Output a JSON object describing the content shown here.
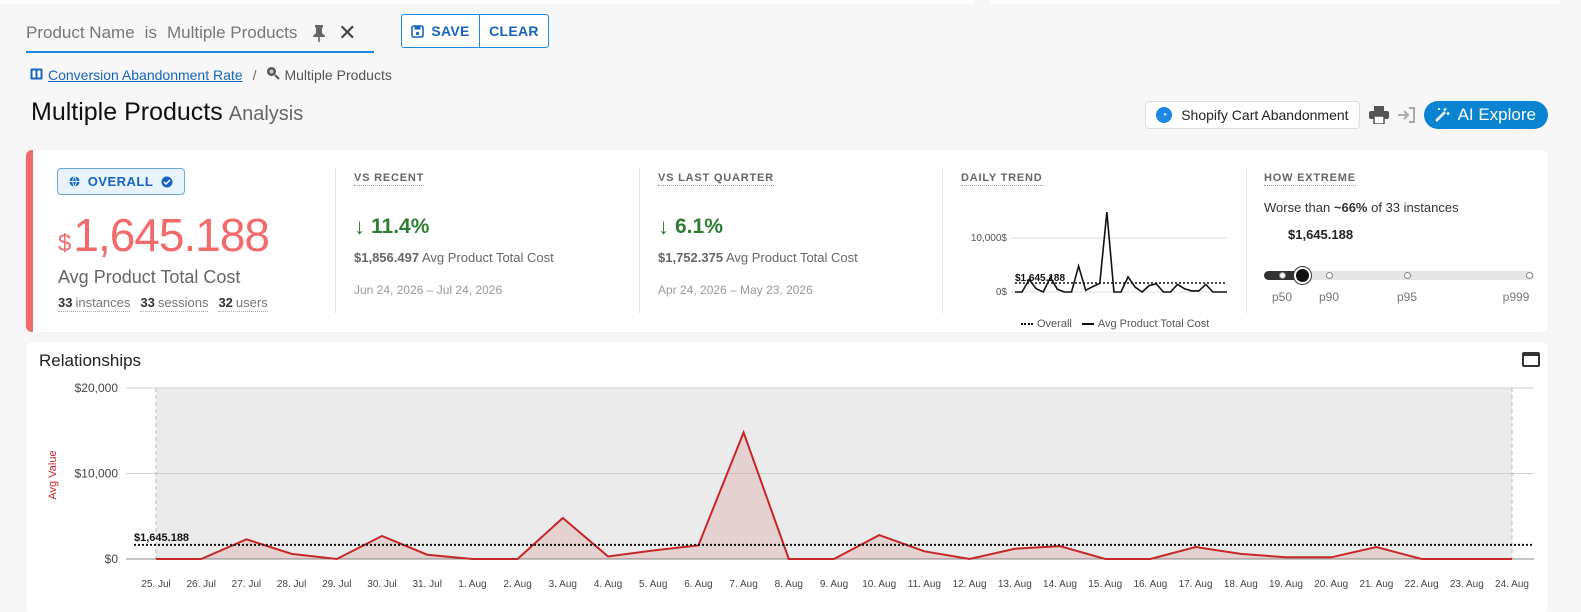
{
  "filter": {
    "field": "Product Name",
    "operator": "is",
    "value": "Multiple Products",
    "save_label": "SAVE",
    "clear_label": "CLEAR"
  },
  "breadcrumb": {
    "parent": "Conversion Abandonment Rate",
    "separator": "/",
    "current": "Multiple Products"
  },
  "page": {
    "title": "Multiple Products",
    "subtitle": "Analysis"
  },
  "actions": {
    "shopify_label": "Shopify Cart Abandonment",
    "ai_label": "AI Explore"
  },
  "kpi": {
    "badge": "OVERALL",
    "currency": "$",
    "value": "1,645.188",
    "metric": "Avg Product Total Cost",
    "counts": [
      {
        "num": "33",
        "label": "instances"
      },
      {
        "num": "33",
        "label": "sessions"
      },
      {
        "num": "32",
        "label": "users"
      }
    ],
    "vs_recent": {
      "head": "VS RECENT",
      "delta": "11.4%",
      "amount": "$1,856.497",
      "metric": "Avg Product Total Cost",
      "range": "Jun 24, 2026 – Jul 24, 2026"
    },
    "vs_quarter": {
      "head": "VS LAST QUARTER",
      "delta": "6.1%",
      "amount": "$1,752.375",
      "metric": "Avg Product Total Cost",
      "range": "Apr 24, 2026 – May 23, 2026"
    },
    "daily_trend": {
      "head": "DAILY TREND",
      "y_labels": [
        "10,000$",
        "0$"
      ],
      "ref_label": "$1,645.188",
      "legend_overall": "Overall",
      "legend_metric": "Avg Product Total Cost"
    },
    "extreme": {
      "head": "HOW EXTREME",
      "prefix": "Worse than",
      "pct": "~66%",
      "suffix": "of 33 instances",
      "value": "$1,645.188",
      "percentile_position": 0.11,
      "ticks": [
        "p50",
        "p90",
        "p95",
        "p999"
      ]
    }
  },
  "relationships": {
    "title": "Relationships",
    "ref_label": "$1,645.188"
  },
  "chart_data": {
    "type": "area",
    "title": "",
    "xlabel": "",
    "ylabel": "Avg Value",
    "ylim": [
      0,
      20000
    ],
    "y_ticks": [
      "$20,000",
      "$10,000",
      "$0"
    ],
    "reference_line": 1645.188,
    "categories": [
      "25. Jul",
      "26. Jul",
      "27. Jul",
      "28. Jul",
      "29. Jul",
      "30. Jul",
      "31. Jul",
      "1. Aug",
      "2. Aug",
      "3. Aug",
      "4. Aug",
      "5. Aug",
      "6. Aug",
      "7. Aug",
      "8. Aug",
      "9. Aug",
      "10. Aug",
      "11. Aug",
      "12. Aug",
      "13. Aug",
      "14. Aug",
      "15. Aug",
      "16. Aug",
      "17. Aug",
      "18. Aug",
      "19. Aug",
      "20. Aug",
      "21. Aug",
      "22. Aug",
      "23. Aug",
      "24. Aug"
    ],
    "series": [
      {
        "values": [
          0,
          0,
          2300,
          600,
          0,
          2700,
          500,
          0,
          0,
          4800,
          300,
          1000,
          1600,
          14800,
          0,
          0,
          2800,
          900,
          0,
          1200,
          1500,
          0,
          0,
          1400,
          600,
          200,
          200,
          1400,
          0,
          0,
          0
        ],
        "color": "#c62828"
      }
    ],
    "grid": true
  }
}
